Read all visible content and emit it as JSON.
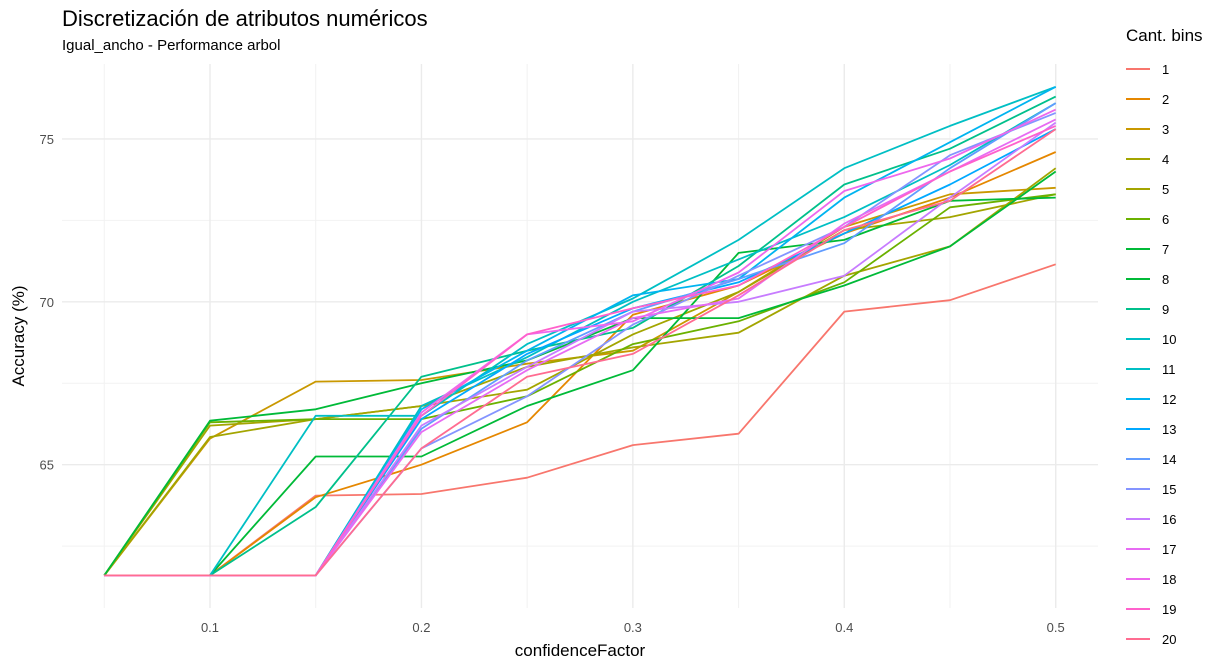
{
  "chart_data": {
    "type": "line",
    "title": "Discretización de atributos numéricos",
    "subtitle": "Igual_ancho - Performance arbol",
    "xlabel": "confidenceFactor",
    "ylabel": "Accuracy (%)",
    "xlim": [
      0.03,
      0.52
    ],
    "ylim": [
      60.6,
      77.3
    ],
    "x_ticks": [
      0.1,
      0.2,
      0.3,
      0.4,
      0.5
    ],
    "x_tick_labels": [
      "0.1",
      "0.2",
      "0.3",
      "0.4",
      "0.5"
    ],
    "y_ticks": [
      65,
      70,
      75
    ],
    "y_tick_labels": [
      "65",
      "70",
      "75"
    ],
    "grid": true,
    "legend_title": "Cant. bins",
    "legend_position": "right",
    "x": [
      0.05,
      0.1,
      0.15,
      0.2,
      0.25,
      0.3,
      0.35,
      0.4,
      0.45,
      0.5
    ],
    "series": [
      {
        "name": "1",
        "color": "#F8766D",
        "values": [
          61.6,
          61.6,
          64.05,
          64.1,
          64.6,
          65.6,
          65.95,
          69.7,
          70.05,
          71.15
        ]
      },
      {
        "name": "2",
        "color": "#E58700",
        "values": [
          61.6,
          61.6,
          64.0,
          65.0,
          66.3,
          69.6,
          70.5,
          72.1,
          73.2,
          74.6
        ]
      },
      {
        "name": "3",
        "color": "#C99800",
        "values": [
          61.6,
          65.8,
          67.55,
          67.6,
          68.1,
          68.5,
          70.3,
          72.3,
          73.3,
          73.5
        ]
      },
      {
        "name": "4",
        "color": "#A3A500",
        "values": [
          61.6,
          65.85,
          66.4,
          66.8,
          67.3,
          69.0,
          70.3,
          72.2,
          72.6,
          73.3
        ]
      },
      {
        "name": "5",
        "color": "#A3A500",
        "values": [
          61.6,
          66.2,
          66.4,
          66.8,
          68.0,
          68.6,
          69.05,
          70.8,
          71.7,
          74.1
        ]
      },
      {
        "name": "6",
        "color": "#6BB100",
        "values": [
          61.6,
          66.3,
          66.4,
          66.4,
          67.1,
          68.7,
          69.4,
          70.6,
          72.9,
          73.3
        ]
      },
      {
        "name": "7",
        "color": "#00BA38",
        "values": [
          61.6,
          66.35,
          66.7,
          67.5,
          68.2,
          69.5,
          69.5,
          70.5,
          71.7,
          74.0
        ]
      },
      {
        "name": "8",
        "color": "#00BA38",
        "values": [
          61.6,
          61.6,
          65.25,
          65.25,
          66.8,
          67.9,
          71.5,
          71.9,
          73.1,
          73.2
        ]
      },
      {
        "name": "9",
        "color": "#00C08B",
        "values": [
          61.6,
          61.6,
          63.7,
          67.7,
          68.5,
          69.2,
          71.1,
          73.6,
          74.7,
          76.3
        ]
      },
      {
        "name": "10",
        "color": "#00BFC4",
        "values": [
          61.6,
          61.6,
          66.5,
          66.5,
          68.7,
          70.1,
          71.9,
          74.1,
          75.4,
          76.6
        ]
      },
      {
        "name": "11",
        "color": "#00BFC4",
        "values": [
          61.6,
          61.6,
          61.6,
          66.8,
          68.3,
          70.0,
          71.3,
          72.6,
          74.2,
          76.1
        ]
      },
      {
        "name": "12",
        "color": "#00B4F0",
        "values": [
          61.6,
          61.6,
          61.6,
          66.7,
          68.5,
          70.2,
          70.7,
          73.2,
          74.9,
          76.6
        ]
      },
      {
        "name": "13",
        "color": "#00A9FF",
        "values": [
          61.6,
          61.6,
          61.6,
          66.4,
          68.4,
          69.8,
          70.6,
          72.1,
          73.6,
          75.3
        ]
      },
      {
        "name": "14",
        "color": "#619CFF",
        "values": [
          61.6,
          61.6,
          61.6,
          66.1,
          68.2,
          69.7,
          70.7,
          71.8,
          74.1,
          76.1
        ]
      },
      {
        "name": "15",
        "color": "#8494FF",
        "values": [
          61.6,
          61.6,
          61.6,
          65.5,
          67.1,
          69.3,
          70.8,
          72.3,
          74.5,
          75.8
        ]
      },
      {
        "name": "16",
        "color": "#C77CFF",
        "values": [
          61.6,
          61.6,
          61.6,
          66.2,
          68.0,
          69.7,
          70.0,
          70.8,
          73.2,
          75.5
        ]
      },
      {
        "name": "17",
        "color": "#E76BF3",
        "values": [
          61.6,
          61.6,
          61.6,
          66.0,
          67.9,
          69.5,
          70.1,
          72.4,
          74.0,
          75.6
        ]
      },
      {
        "name": "18",
        "color": "#ED68ED",
        "values": [
          61.6,
          61.6,
          61.6,
          66.6,
          69.0,
          69.4,
          70.9,
          73.4,
          74.4,
          75.9
        ]
      },
      {
        "name": "19",
        "color": "#FF61CC",
        "values": [
          61.6,
          61.6,
          61.6,
          66.5,
          69.0,
          69.8,
          70.5,
          72.3,
          74.0,
          75.4
        ]
      },
      {
        "name": "20",
        "color": "#FF6C91",
        "values": [
          61.6,
          61.6,
          61.6,
          65.5,
          67.7,
          68.4,
          70.2,
          72.2,
          73.1,
          75.3
        ]
      }
    ]
  }
}
